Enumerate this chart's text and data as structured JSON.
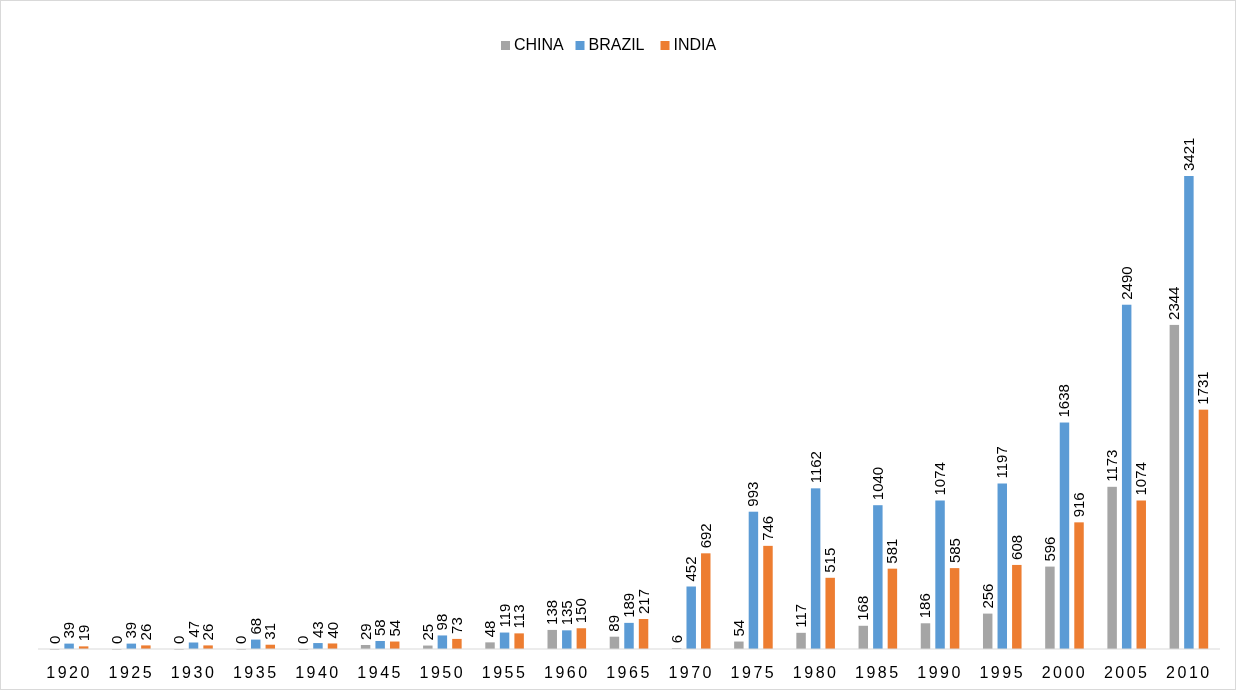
{
  "chart_data": {
    "type": "bar",
    "categories": [
      "1920",
      "1925",
      "1930",
      "1935",
      "1940",
      "1945",
      "1950",
      "1955",
      "1960",
      "1965",
      "1970",
      "1975",
      "1980",
      "1985",
      "1990",
      "1995",
      "2000",
      "2005",
      "2010"
    ],
    "series": [
      {
        "name": "CHINA",
        "color": "#a5a5a5",
        "values": [
          0,
          0,
          0,
          0,
          0,
          29,
          25,
          48,
          138,
          89,
          6,
          54,
          117,
          168,
          186,
          256,
          596,
          1173,
          2344
        ]
      },
      {
        "name": "BRAZIL",
        "color": "#5b9bd5",
        "values": [
          39,
          39,
          47,
          68,
          43,
          58,
          98,
          119,
          135,
          189,
          452,
          993,
          1162,
          1040,
          1074,
          1197,
          1638,
          2490,
          3421
        ]
      },
      {
        "name": "INDIA",
        "color": "#ed7d31",
        "values": [
          19,
          26,
          26,
          31,
          40,
          54,
          73,
          113,
          150,
          217,
          692,
          746,
          515,
          581,
          585,
          608,
          916,
          1074,
          1731
        ]
      }
    ],
    "data_labels": true,
    "legend": "top"
  }
}
